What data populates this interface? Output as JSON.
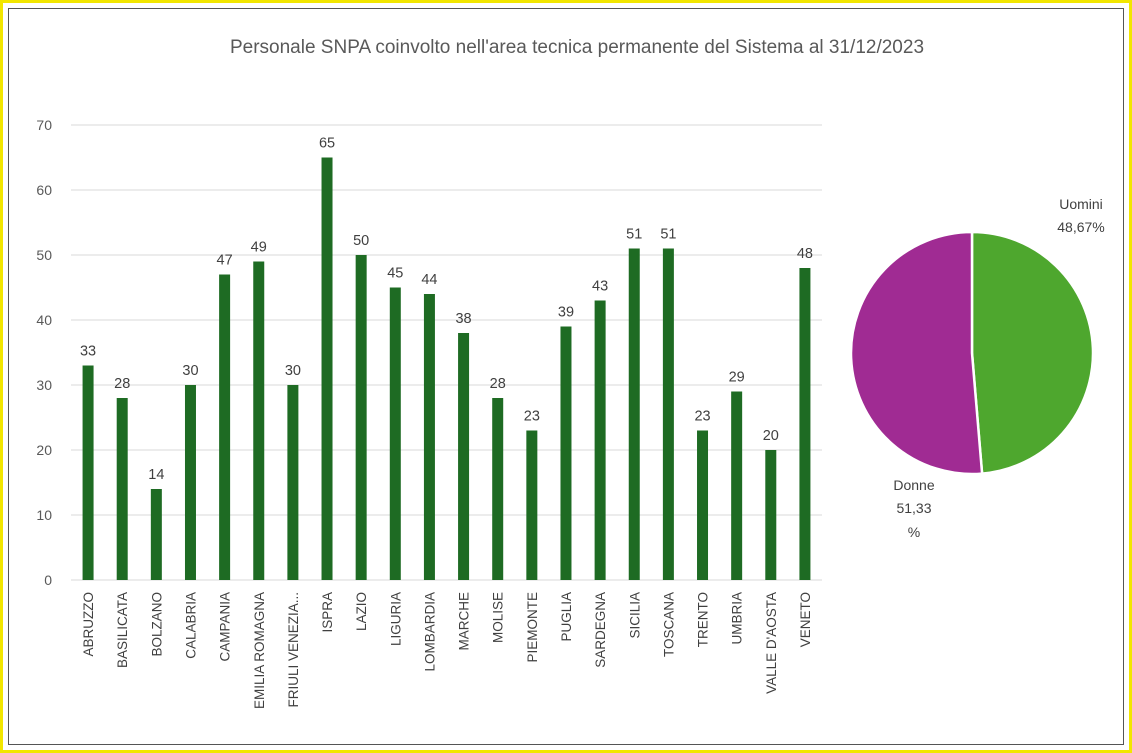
{
  "chart_data": [
    {
      "type": "bar",
      "title": "Personale SNPA coinvolto nell'area tecnica permanente del Sistema al 31/12/2023",
      "categories": [
        "ABRUZZO",
        "BASILICATA",
        "BOLZANO",
        "CALABRIA",
        "CAMPANIA",
        "EMILIA ROMAGNA",
        "FRIULI VENEZIA...",
        "ISPRA",
        "LAZIO",
        "LIGURIA",
        "LOMBARDIA",
        "MARCHE",
        "MOLISE",
        "PIEMONTE",
        "PUGLIA",
        "SARDEGNA",
        "SICILIA",
        "TOSCANA",
        "TRENTO",
        "UMBRIA",
        "VALLE D'AOSTA",
        "VENETO"
      ],
      "values": [
        33,
        28,
        14,
        30,
        47,
        49,
        30,
        65,
        50,
        45,
        44,
        38,
        28,
        23,
        39,
        43,
        51,
        51,
        23,
        29,
        20,
        48
      ],
      "ylim": [
        0,
        70
      ],
      "yticks": [
        "0",
        "10",
        "20",
        "30",
        "40",
        "50",
        "60",
        "70"
      ],
      "grid": true,
      "color": "#1e6b23"
    },
    {
      "type": "pie",
      "slices": [
        {
          "name": "Uomini",
          "value": 48.67,
          "label_line1": "Uomini",
          "label_line2": "48,67%",
          "color": "#4ea72e"
        },
        {
          "name": "Donne",
          "value": 51.33,
          "label_line1": "Donne",
          "label_line2": "51,33",
          "label_line3": "%",
          "color": "#a02b93"
        }
      ]
    }
  ]
}
